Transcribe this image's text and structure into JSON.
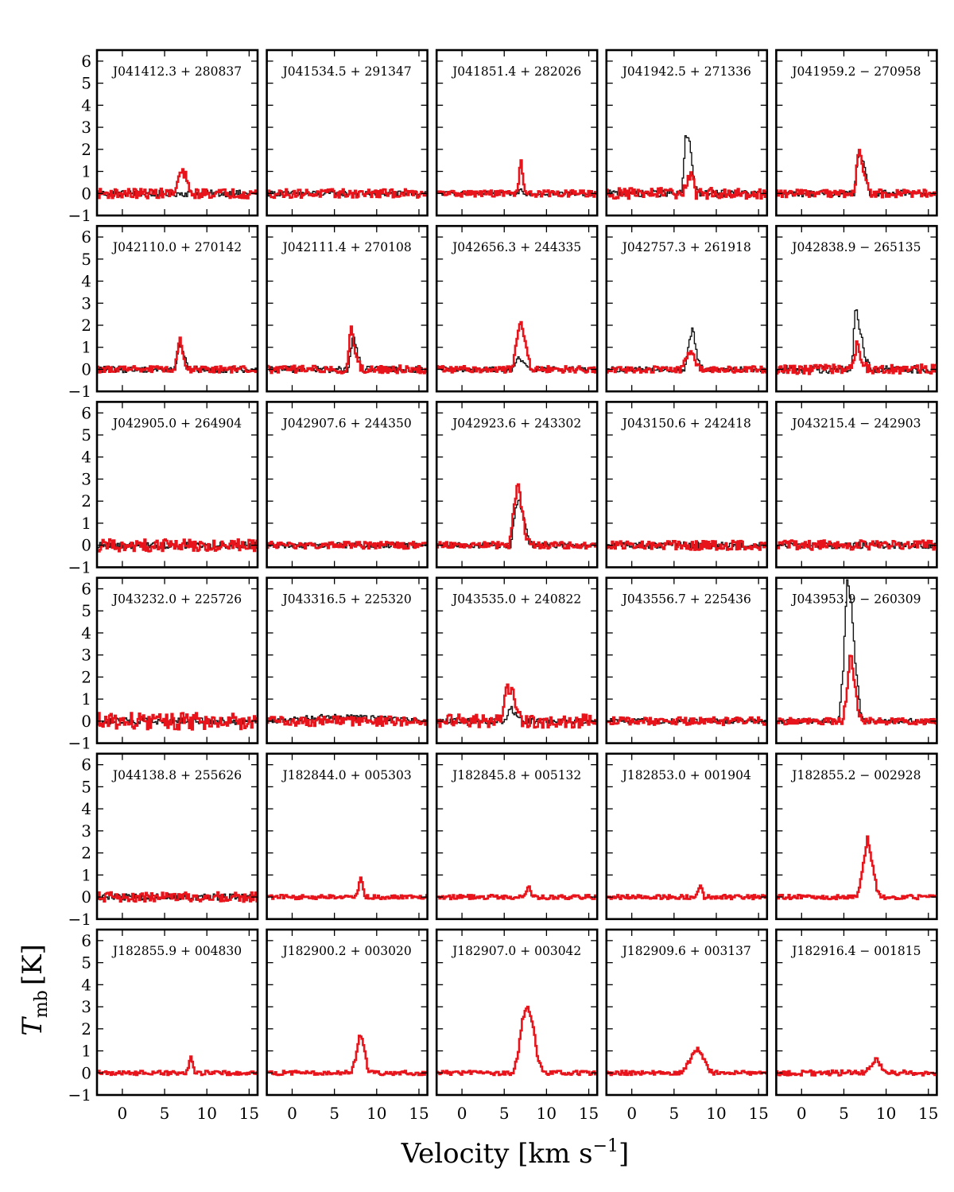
{
  "figure": {
    "ylabel_main": "T",
    "ylabel_sub": "mb",
    "ylabel_unit": "[K]",
    "xlabel_main": "Velocity [km s",
    "xlabel_sup": "−1",
    "xlabel_end": "]"
  },
  "chart_data": {
    "type": "line",
    "layout": {
      "rows": 6,
      "cols": 5
    },
    "xlim": [
      -3,
      16
    ],
    "ylim": [
      -1,
      6.5
    ],
    "x_ticks": [
      0,
      5,
      10,
      15
    ],
    "y_ticks": [
      -1,
      0,
      1,
      2,
      3,
      4,
      5,
      6
    ],
    "series_colors": {
      "red": "#e8141b",
      "black": "#111111"
    },
    "panels": [
      {
        "name": "J041412.3 + 280837",
        "red": [
          [
            -3,
            0
          ],
          [
            6.2,
            0
          ],
          [
            6.8,
            0.9
          ],
          [
            7.4,
            0.9
          ],
          [
            8,
            0
          ],
          [
            16,
            0
          ]
        ],
        "black": [
          [
            -3,
            0
          ],
          [
            16,
            0
          ]
        ],
        "noise_red": 0.22,
        "noise_black": 0.15
      },
      {
        "name": "J041534.5 + 291347",
        "red": [
          [
            -3,
            0
          ],
          [
            16,
            0
          ]
        ],
        "black": [
          [
            -3,
            0
          ],
          [
            16,
            0
          ]
        ],
        "noise_red": 0.2,
        "noise_black": 0.12
      },
      {
        "name": "J041851.4 + 282026",
        "red": [
          [
            -3,
            0
          ],
          [
            6.5,
            0
          ],
          [
            7,
            1.5
          ],
          [
            7.5,
            0
          ],
          [
            16,
            0
          ]
        ],
        "black": [
          [
            -3,
            0
          ],
          [
            6.5,
            0
          ],
          [
            7,
            0.2
          ],
          [
            7.5,
            0
          ],
          [
            16,
            0
          ]
        ],
        "noise_red": 0.15,
        "noise_black": 0.1
      },
      {
        "name": "J041942.5 + 271336",
        "red": [
          [
            -3,
            0
          ],
          [
            6,
            0
          ],
          [
            6.6,
            0.5
          ],
          [
            7.1,
            1.1
          ],
          [
            7.6,
            0
          ],
          [
            16,
            0
          ]
        ],
        "black": [
          [
            -3,
            0
          ],
          [
            5.9,
            0
          ],
          [
            6.4,
            2.7
          ],
          [
            6.9,
            2.2
          ],
          [
            7.4,
            0.5
          ],
          [
            8,
            0
          ],
          [
            16,
            0
          ]
        ],
        "noise_red": 0.25,
        "noise_black": 0.15
      },
      {
        "name": "J041959.2 − 270958",
        "red": [
          [
            -3,
            0
          ],
          [
            6.2,
            0
          ],
          [
            6.8,
            2.1
          ],
          [
            7.4,
            1
          ],
          [
            8,
            0
          ],
          [
            16,
            0
          ]
        ],
        "black": [
          [
            -3,
            0
          ],
          [
            6.2,
            0
          ],
          [
            6.8,
            2
          ],
          [
            7.4,
            1.2
          ],
          [
            8,
            0
          ],
          [
            16,
            0
          ]
        ],
        "noise_red": 0.18,
        "noise_black": 0.15
      },
      {
        "name": "J042110.0 + 270142",
        "red": [
          [
            -3,
            0
          ],
          [
            6.2,
            0
          ],
          [
            6.8,
            1.5
          ],
          [
            7.4,
            0.3
          ],
          [
            8,
            0
          ],
          [
            16,
            0
          ]
        ],
        "black": [
          [
            -3,
            0
          ],
          [
            6.2,
            0
          ],
          [
            6.8,
            1.3
          ],
          [
            7.4,
            0.5
          ],
          [
            8,
            0
          ],
          [
            16,
            0
          ]
        ],
        "noise_red": 0.15,
        "noise_black": 0.15
      },
      {
        "name": "J042111.4 + 270108",
        "red": [
          [
            -3,
            0
          ],
          [
            6.4,
            0
          ],
          [
            7,
            2
          ],
          [
            7.6,
            0.6
          ],
          [
            8.2,
            0
          ],
          [
            16,
            0
          ]
        ],
        "black": [
          [
            -3,
            0
          ],
          [
            6.6,
            0
          ],
          [
            7.2,
            1.5
          ],
          [
            7.8,
            0.6
          ],
          [
            8.4,
            0
          ],
          [
            16,
            0
          ]
        ],
        "noise_red": 0.18,
        "noise_black": 0.15
      },
      {
        "name": "J042656.3 + 244335",
        "red": [
          [
            -3,
            0
          ],
          [
            6,
            0
          ],
          [
            6.5,
            1.3
          ],
          [
            7,
            2.2
          ],
          [
            7.6,
            0.9
          ],
          [
            8.2,
            0
          ],
          [
            16,
            0
          ]
        ],
        "black": [
          [
            -3,
            0
          ],
          [
            6,
            0
          ],
          [
            6.6,
            0.5
          ],
          [
            7.4,
            0.3
          ],
          [
            8,
            0
          ],
          [
            16,
            0
          ]
        ],
        "noise_red": 0.15,
        "noise_black": 0.12
      },
      {
        "name": "J042757.3 + 261918",
        "red": [
          [
            -3,
            0
          ],
          [
            5.8,
            0
          ],
          [
            6.4,
            0.5
          ],
          [
            7,
            0.9
          ],
          [
            7.6,
            0.2
          ],
          [
            8.2,
            0
          ],
          [
            16,
            0
          ]
        ],
        "black": [
          [
            -3,
            0
          ],
          [
            6.2,
            0
          ],
          [
            6.8,
            1.2
          ],
          [
            7.2,
            1.9
          ],
          [
            7.8,
            0.4
          ],
          [
            8.4,
            0
          ],
          [
            16,
            0
          ]
        ],
        "noise_red": 0.15,
        "noise_black": 0.12
      },
      {
        "name": "J042838.9 − 265135",
        "red": [
          [
            -3,
            0
          ],
          [
            6,
            0
          ],
          [
            6.6,
            1.3
          ],
          [
            7.2,
            0.2
          ],
          [
            8,
            0
          ],
          [
            16,
            0
          ]
        ],
        "black": [
          [
            -3,
            0
          ],
          [
            5.9,
            0
          ],
          [
            6.4,
            2.8
          ],
          [
            7,
            1.7
          ],
          [
            7.6,
            0.4
          ],
          [
            8.2,
            0
          ],
          [
            16,
            0
          ]
        ],
        "noise_red": 0.22,
        "noise_black": 0.18
      },
      {
        "name": "J042905.0 + 264904",
        "red": [
          [
            -3,
            0
          ],
          [
            16,
            0
          ]
        ],
        "black": [
          [
            -3,
            0
          ],
          [
            16,
            0
          ]
        ],
        "noise_red": 0.28,
        "noise_black": 0.15
      },
      {
        "name": "J042907.6 + 244350",
        "red": [
          [
            -3,
            0
          ],
          [
            16,
            0
          ]
        ],
        "black": [
          [
            -3,
            0
          ],
          [
            16,
            0
          ]
        ],
        "noise_red": 0.16,
        "noise_black": 0.12
      },
      {
        "name": "J042923.6 + 243302",
        "red": [
          [
            -3,
            0
          ],
          [
            5.6,
            0
          ],
          [
            6.1,
            1.5
          ],
          [
            6.6,
            2.9
          ],
          [
            7.1,
            1.6
          ],
          [
            7.6,
            0.3
          ],
          [
            8.2,
            0
          ],
          [
            16,
            0
          ]
        ],
        "black": [
          [
            -3,
            0
          ],
          [
            5.8,
            0
          ],
          [
            6.3,
            1.6
          ],
          [
            6.8,
            2.1
          ],
          [
            7.3,
            1.2
          ],
          [
            7.9,
            0.2
          ],
          [
            8.5,
            0
          ],
          [
            16,
            0
          ]
        ],
        "noise_red": 0.15,
        "noise_black": 0.12
      },
      {
        "name": "J043150.6 + 242418",
        "red": [
          [
            -3,
            0
          ],
          [
            16,
            0
          ]
        ],
        "black": [
          [
            -3,
            0
          ],
          [
            16,
            0
          ]
        ],
        "noise_red": 0.22,
        "noise_black": 0.15
      },
      {
        "name": "J043215.4 − 242903",
        "red": [
          [
            -3,
            0
          ],
          [
            16,
            0
          ]
        ],
        "black": [
          [
            -3,
            0
          ],
          [
            16,
            0
          ]
        ],
        "noise_red": 0.22,
        "noise_black": 0.15
      },
      {
        "name": "J043232.0 + 225726",
        "red": [
          [
            -3,
            0
          ],
          [
            16,
            0
          ]
        ],
        "black": [
          [
            -3,
            0
          ],
          [
            16,
            0
          ]
        ],
        "noise_red": 0.38,
        "noise_black": 0.15
      },
      {
        "name": "J043316.5 + 225320",
        "red": [
          [
            -3,
            0
          ],
          [
            16,
            0
          ]
        ],
        "black": [
          [
            -3,
            0
          ],
          [
            4,
            0.2
          ],
          [
            6,
            0.2
          ],
          [
            16,
            0
          ]
        ],
        "noise_red": 0.22,
        "noise_black": 0.12
      },
      {
        "name": "J043535.0 + 240822",
        "red": [
          [
            -3,
            0
          ],
          [
            4.6,
            0
          ],
          [
            5.2,
            1.4
          ],
          [
            5.8,
            1.5
          ],
          [
            6.4,
            0.7
          ],
          [
            7,
            0
          ],
          [
            16,
            0
          ]
        ],
        "black": [
          [
            -3,
            0
          ],
          [
            5,
            0
          ],
          [
            5.8,
            0.6
          ],
          [
            6.6,
            0.2
          ],
          [
            7.4,
            0
          ],
          [
            16,
            0
          ]
        ],
        "noise_red": 0.3,
        "noise_black": 0.12
      },
      {
        "name": "J043556.7 + 225436",
        "red": [
          [
            -3,
            0
          ],
          [
            16,
            0
          ]
        ],
        "black": [
          [
            -3,
            0
          ],
          [
            16,
            0
          ]
        ],
        "noise_red": 0.18,
        "noise_black": 0.12
      },
      {
        "name": "J043953.9 − 260309",
        "red": [
          [
            -3,
            0
          ],
          [
            4.8,
            0
          ],
          [
            5.3,
            1
          ],
          [
            5.8,
            3.2
          ],
          [
            6.3,
            1.7
          ],
          [
            6.8,
            0.3
          ],
          [
            7.4,
            0
          ],
          [
            16,
            0
          ]
        ],
        "black": [
          [
            -3,
            0
          ],
          [
            4.4,
            0
          ],
          [
            4.9,
            2.2
          ],
          [
            5.4,
            6.5
          ],
          [
            5.9,
            5.3
          ],
          [
            6.4,
            2.5
          ],
          [
            7,
            0.3
          ],
          [
            7.6,
            0
          ],
          [
            16,
            0
          ]
        ],
        "noise_red": 0.15,
        "noise_black": 0.12
      },
      {
        "name": "J044138.8 + 255626",
        "red": [
          [
            -3,
            0
          ],
          [
            16,
            0
          ]
        ],
        "black": [
          [
            -3,
            0
          ],
          [
            16,
            0
          ]
        ],
        "noise_red": 0.22,
        "noise_black": 0.15
      },
      {
        "name": "J182844.0 + 005303",
        "red": [
          [
            -3,
            0
          ],
          [
            7.6,
            0
          ],
          [
            8.1,
            1
          ],
          [
            8.6,
            0
          ],
          [
            16,
            0
          ]
        ],
        "noise_red": 0.1
      },
      {
        "name": "J182845.8 + 005132",
        "red": [
          [
            -3,
            0
          ],
          [
            7.4,
            0
          ],
          [
            7.9,
            0.6
          ],
          [
            8.4,
            0
          ],
          [
            16,
            0
          ]
        ],
        "noise_red": 0.1
      },
      {
        "name": "J182853.0 + 001904",
        "red": [
          [
            -3,
            0
          ],
          [
            7.6,
            0
          ],
          [
            8.1,
            0.6
          ],
          [
            8.6,
            0
          ],
          [
            16,
            0
          ]
        ],
        "noise_red": 0.1
      },
      {
        "name": "J182855.2 − 002928",
        "red": [
          [
            -3,
            0
          ],
          [
            6.6,
            0
          ],
          [
            7.2,
            1.2
          ],
          [
            7.8,
            2.7
          ],
          [
            8.4,
            1.5
          ],
          [
            9,
            0.2
          ],
          [
            9.6,
            0
          ],
          [
            16,
            0
          ]
        ],
        "noise_red": 0.1
      },
      {
        "name": "J182855.9 + 004830",
        "red": [
          [
            -3,
            0
          ],
          [
            7.6,
            0
          ],
          [
            8.1,
            0.8
          ],
          [
            8.6,
            0
          ],
          [
            16,
            0
          ]
        ],
        "noise_red": 0.1
      },
      {
        "name": "J182900.2 + 003020",
        "red": [
          [
            -3,
            0
          ],
          [
            7,
            0
          ],
          [
            7.5,
            0.7
          ],
          [
            8,
            1.8
          ],
          [
            8.5,
            1.2
          ],
          [
            9,
            0
          ],
          [
            16,
            0
          ]
        ],
        "noise_red": 0.1
      },
      {
        "name": "J182907.0 + 003042",
        "red": [
          [
            -3,
            0
          ],
          [
            6,
            0
          ],
          [
            6.6,
            0.8
          ],
          [
            7.2,
            2.5
          ],
          [
            7.8,
            3
          ],
          [
            8.4,
            2.2
          ],
          [
            9,
            0.6
          ],
          [
            9.6,
            0
          ],
          [
            16,
            0
          ]
        ],
        "noise_red": 0.1
      },
      {
        "name": "J182909.6 + 003137",
        "red": [
          [
            -3,
            0
          ],
          [
            6,
            0
          ],
          [
            6.6,
            0.4
          ],
          [
            7.2,
            0.8
          ],
          [
            7.8,
            1.1
          ],
          [
            8.4,
            0.7
          ],
          [
            9,
            0.2
          ],
          [
            9.6,
            0
          ],
          [
            16,
            0
          ]
        ],
        "noise_red": 0.1
      },
      {
        "name": "J182916.4 − 001815",
        "red": [
          [
            -3,
            0
          ],
          [
            7.6,
            0
          ],
          [
            8.2,
            0.3
          ],
          [
            8.8,
            0.7
          ],
          [
            9.4,
            0.3
          ],
          [
            10,
            0
          ],
          [
            16,
            0
          ]
        ],
        "noise_red": 0.12
      }
    ]
  }
}
